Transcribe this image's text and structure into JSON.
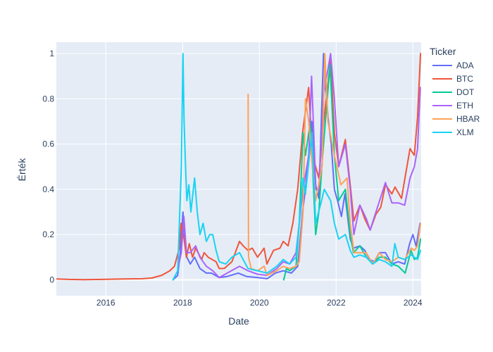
{
  "chart_data": {
    "type": "line",
    "title": "",
    "xlabel": "Date",
    "ylabel": "Érték",
    "x_axis_type": "date",
    "xlim": [
      "2014-09-17",
      "2024-03-20"
    ],
    "ylim": [
      -0.07,
      1.05
    ],
    "x_ticks": [
      "2016",
      "2018",
      "2020",
      "2022",
      "2024"
    ],
    "y_ticks": [
      "0",
      "0.2",
      "0.4",
      "0.6",
      "0.8",
      "1"
    ],
    "grid": true,
    "legend": {
      "title": "Ticker",
      "placement": "right"
    },
    "colors": {
      "plot_bg": "#e5ecf6",
      "grid": "#ffffff",
      "text": "#2a3f5f"
    },
    "series": [
      {
        "name": "ADA",
        "color": "#636efa",
        "points": [
          [
            "2017-10-01",
            0.0
          ],
          [
            "2017-11-15",
            0.02
          ],
          [
            "2017-12-10",
            0.12
          ],
          [
            "2018-01-04",
            0.3
          ],
          [
            "2018-01-20",
            0.18
          ],
          [
            "2018-02-10",
            0.1
          ],
          [
            "2018-03-15",
            0.07
          ],
          [
            "2018-04-25",
            0.1
          ],
          [
            "2018-06-15",
            0.05
          ],
          [
            "2018-08-15",
            0.03
          ],
          [
            "2018-10-01",
            0.03
          ],
          [
            "2018-12-15",
            0.01
          ],
          [
            "2019-03-01",
            0.015
          ],
          [
            "2019-06-15",
            0.03
          ],
          [
            "2019-09-01",
            0.015
          ],
          [
            "2019-12-15",
            0.01
          ],
          [
            "2020-03-15",
            0.005
          ],
          [
            "2020-06-01",
            0.03
          ],
          [
            "2020-08-15",
            0.04
          ],
          [
            "2020-11-01",
            0.03
          ],
          [
            "2021-01-01",
            0.06
          ],
          [
            "2021-02-15",
            0.3
          ],
          [
            "2021-03-15",
            0.4
          ],
          [
            "2021-05-15",
            0.7
          ],
          [
            "2021-06-20",
            0.42
          ],
          [
            "2021-07-20",
            0.36
          ],
          [
            "2021-09-02",
            1.0
          ],
          [
            "2021-10-15",
            0.72
          ],
          [
            "2021-11-15",
            0.6
          ],
          [
            "2021-12-15",
            0.4
          ],
          [
            "2022-01-20",
            0.34
          ],
          [
            "2022-02-20",
            0.28
          ],
          [
            "2022-03-25",
            0.38
          ],
          [
            "2022-05-15",
            0.18
          ],
          [
            "2022-06-15",
            0.14
          ],
          [
            "2022-08-15",
            0.15
          ],
          [
            "2022-10-01",
            0.13
          ],
          [
            "2022-11-15",
            0.09
          ],
          [
            "2023-01-01",
            0.08
          ],
          [
            "2023-02-15",
            0.12
          ],
          [
            "2023-04-15",
            0.12
          ],
          [
            "2023-06-15",
            0.07
          ],
          [
            "2023-08-15",
            0.08
          ],
          [
            "2023-10-15",
            0.07
          ],
          [
            "2023-12-01",
            0.16
          ],
          [
            "2024-01-01",
            0.2
          ],
          [
            "2024-02-01",
            0.15
          ],
          [
            "2024-03-10",
            0.25
          ]
        ]
      },
      {
        "name": "BTC",
        "color": "#ef553b",
        "points": [
          [
            "2014-09-17",
            0.004
          ],
          [
            "2015-01-15",
            0.002
          ],
          [
            "2015-06-01",
            0.001
          ],
          [
            "2015-12-01",
            0.002
          ],
          [
            "2016-06-15",
            0.004
          ],
          [
            "2016-12-15",
            0.005
          ],
          [
            "2017-03-15",
            0.008
          ],
          [
            "2017-06-15",
            0.02
          ],
          [
            "2017-09-01",
            0.04
          ],
          [
            "2017-10-15",
            0.06
          ],
          [
            "2017-11-30",
            0.14
          ],
          [
            "2017-12-17",
            0.25
          ],
          [
            "2018-01-15",
            0.18
          ],
          [
            "2018-02-06",
            0.1
          ],
          [
            "2018-03-05",
            0.16
          ],
          [
            "2018-04-05",
            0.1
          ],
          [
            "2018-05-05",
            0.14
          ],
          [
            "2018-07-01",
            0.09
          ],
          [
            "2018-07-25",
            0.12
          ],
          [
            "2018-09-01",
            0.1
          ],
          [
            "2018-11-15",
            0.08
          ],
          [
            "2018-12-15",
            0.05
          ],
          [
            "2019-02-01",
            0.05
          ],
          [
            "2019-04-15",
            0.08
          ],
          [
            "2019-06-26",
            0.17
          ],
          [
            "2019-08-01",
            0.15
          ],
          [
            "2019-09-15",
            0.13
          ],
          [
            "2019-10-26",
            0.14
          ],
          [
            "2019-12-15",
            0.1
          ],
          [
            "2020-02-15",
            0.14
          ],
          [
            "2020-03-13",
            0.07
          ],
          [
            "2020-05-15",
            0.13
          ],
          [
            "2020-07-15",
            0.14
          ],
          [
            "2020-08-15",
            0.17
          ],
          [
            "2020-10-01",
            0.15
          ],
          [
            "2020-11-15",
            0.25
          ],
          [
            "2020-12-31",
            0.4
          ],
          [
            "2021-02-15",
            0.65
          ],
          [
            "2021-04-14",
            0.85
          ],
          [
            "2021-05-20",
            0.55
          ],
          [
            "2021-07-20",
            0.45
          ],
          [
            "2021-09-05",
            0.7
          ],
          [
            "2021-11-09",
            0.97
          ],
          [
            "2021-12-15",
            0.65
          ],
          [
            "2022-01-25",
            0.5
          ],
          [
            "2022-03-29",
            0.62
          ],
          [
            "2022-05-15",
            0.42
          ],
          [
            "2022-06-18",
            0.26
          ],
          [
            "2022-08-15",
            0.33
          ],
          [
            "2022-09-30",
            0.27
          ],
          [
            "2022-11-21",
            0.22
          ],
          [
            "2023-01-15",
            0.29
          ],
          [
            "2023-03-01",
            0.32
          ],
          [
            "2023-04-15",
            0.42
          ],
          [
            "2023-06-15",
            0.38
          ],
          [
            "2023-07-15",
            0.41
          ],
          [
            "2023-09-15",
            0.36
          ],
          [
            "2023-10-25",
            0.47
          ],
          [
            "2023-12-05",
            0.58
          ],
          [
            "2024-01-15",
            0.55
          ],
          [
            "2024-02-15",
            0.72
          ],
          [
            "2024-03-14",
            1.0
          ]
        ]
      },
      {
        "name": "DOT",
        "color": "#00cc96",
        "points": [
          [
            "2020-08-20",
            0.0
          ],
          [
            "2020-09-15",
            0.05
          ],
          [
            "2020-10-15",
            0.04
          ],
          [
            "2020-12-15",
            0.06
          ],
          [
            "2021-01-15",
            0.25
          ],
          [
            "2021-02-20",
            0.65
          ],
          [
            "2021-03-15",
            0.55
          ],
          [
            "2021-05-01",
            0.7
          ],
          [
            "2021-06-20",
            0.2
          ],
          [
            "2021-07-20",
            0.3
          ],
          [
            "2021-08-25",
            0.55
          ],
          [
            "2021-11-04",
            0.95
          ],
          [
            "2021-12-15",
            0.55
          ],
          [
            "2022-01-25",
            0.35
          ],
          [
            "2022-03-30",
            0.4
          ],
          [
            "2022-05-15",
            0.2
          ],
          [
            "2022-06-15",
            0.12
          ],
          [
            "2022-08-15",
            0.15
          ],
          [
            "2022-10-15",
            0.1
          ],
          [
            "2022-12-15",
            0.07
          ],
          [
            "2023-02-15",
            0.1
          ],
          [
            "2023-04-15",
            0.1
          ],
          [
            "2023-06-15",
            0.07
          ],
          [
            "2023-08-15",
            0.06
          ],
          [
            "2023-10-20",
            0.03
          ],
          [
            "2023-12-15",
            0.13
          ],
          [
            "2024-01-15",
            0.09
          ],
          [
            "2024-02-15",
            0.1
          ],
          [
            "2024-03-14",
            0.18
          ]
        ]
      },
      {
        "name": "ETH",
        "color": "#ab63fa",
        "points": [
          [
            "2017-11-15",
            0.05
          ],
          [
            "2017-12-20",
            0.12
          ],
          [
            "2018-01-13",
            0.28
          ],
          [
            "2018-02-06",
            0.12
          ],
          [
            "2018-03-15",
            0.12
          ],
          [
            "2018-05-05",
            0.15
          ],
          [
            "2018-06-15",
            0.1
          ],
          [
            "2018-08-15",
            0.06
          ],
          [
            "2018-10-15",
            0.04
          ],
          [
            "2018-12-15",
            0.01
          ],
          [
            "2019-03-01",
            0.03
          ],
          [
            "2019-06-26",
            0.06
          ],
          [
            "2019-09-15",
            0.04
          ],
          [
            "2019-12-15",
            0.025
          ],
          [
            "2020-03-13",
            0.02
          ],
          [
            "2020-06-15",
            0.05
          ],
          [
            "2020-08-15",
            0.08
          ],
          [
            "2020-10-15",
            0.07
          ],
          [
            "2020-12-15",
            0.12
          ],
          [
            "2021-01-15",
            0.25
          ],
          [
            "2021-02-20",
            0.4
          ],
          [
            "2021-04-15",
            0.55
          ],
          [
            "2021-05-12",
            0.9
          ],
          [
            "2021-06-22",
            0.4
          ],
          [
            "2021-07-20",
            0.4
          ],
          [
            "2021-09-05",
            0.82
          ],
          [
            "2021-11-09",
            1.0
          ],
          [
            "2021-12-15",
            0.8
          ],
          [
            "2022-01-25",
            0.5
          ],
          [
            "2022-03-30",
            0.6
          ],
          [
            "2022-05-15",
            0.4
          ],
          [
            "2022-06-18",
            0.2
          ],
          [
            "2022-08-15",
            0.33
          ],
          [
            "2022-10-15",
            0.27
          ],
          [
            "2022-11-21",
            0.22
          ],
          [
            "2023-01-15",
            0.3
          ],
          [
            "2023-04-15",
            0.43
          ],
          [
            "2023-06-15",
            0.34
          ],
          [
            "2023-08-15",
            0.34
          ],
          [
            "2023-10-15",
            0.33
          ],
          [
            "2023-12-05",
            0.45
          ],
          [
            "2024-01-15",
            0.5
          ],
          [
            "2024-02-15",
            0.58
          ],
          [
            "2024-03-12",
            0.85
          ]
        ]
      },
      {
        "name": "HBAR",
        "color": "#ffa15a",
        "points": [
          [
            "2019-09-16",
            0.82
          ],
          [
            "2019-09-20",
            0.1
          ],
          [
            "2019-10-15",
            0.05
          ],
          [
            "2019-12-15",
            0.04
          ],
          [
            "2020-02-15",
            0.06
          ],
          [
            "2020-03-15",
            0.02
          ],
          [
            "2020-06-15",
            0.04
          ],
          [
            "2020-08-15",
            0.06
          ],
          [
            "2020-10-15",
            0.05
          ],
          [
            "2020-12-15",
            0.06
          ],
          [
            "2021-01-15",
            0.08
          ],
          [
            "2021-02-20",
            0.3
          ],
          [
            "2021-03-15",
            0.8
          ],
          [
            "2021-04-15",
            0.7
          ],
          [
            "2021-05-20",
            0.5
          ],
          [
            "2021-06-20",
            0.35
          ],
          [
            "2021-08-20",
            0.5
          ],
          [
            "2021-09-15",
            1.0
          ],
          [
            "2021-10-15",
            0.7
          ],
          [
            "2021-12-15",
            0.55
          ],
          [
            "2022-02-15",
            0.42
          ],
          [
            "2022-04-15",
            0.45
          ],
          [
            "2022-05-15",
            0.25
          ],
          [
            "2022-06-20",
            0.12
          ],
          [
            "2022-08-15",
            0.12
          ],
          [
            "2022-10-15",
            0.12
          ],
          [
            "2022-12-15",
            0.07
          ],
          [
            "2023-02-15",
            0.12
          ],
          [
            "2023-04-15",
            0.09
          ],
          [
            "2023-06-15",
            0.08
          ],
          [
            "2023-08-15",
            0.1
          ],
          [
            "2023-10-15",
            0.09
          ],
          [
            "2023-12-15",
            0.14
          ],
          [
            "2024-01-15",
            0.13
          ],
          [
            "2024-02-15",
            0.15
          ],
          [
            "2024-03-14",
            0.25
          ]
        ]
      },
      {
        "name": "XLM",
        "color": "#19d3f3",
        "points": [
          [
            "2017-10-01",
            0.0
          ],
          [
            "2017-11-15",
            0.04
          ],
          [
            "2017-12-20",
            0.5
          ],
          [
            "2018-01-04",
            1.0
          ],
          [
            "2018-01-15",
            0.7
          ],
          [
            "2018-01-25",
            0.55
          ],
          [
            "2018-02-10",
            0.35
          ],
          [
            "2018-03-01",
            0.42
          ],
          [
            "2018-03-20",
            0.3
          ],
          [
            "2018-04-25",
            0.45
          ],
          [
            "2018-05-20",
            0.3
          ],
          [
            "2018-06-15",
            0.2
          ],
          [
            "2018-07-15",
            0.25
          ],
          [
            "2018-08-15",
            0.17
          ],
          [
            "2018-09-15",
            0.2
          ],
          [
            "2018-10-15",
            0.2
          ],
          [
            "2018-11-15",
            0.13
          ],
          [
            "2018-12-15",
            0.08
          ],
          [
            "2019-02-15",
            0.07
          ],
          [
            "2019-04-15",
            0.1
          ],
          [
            "2019-06-26",
            0.12
          ],
          [
            "2019-09-15",
            0.05
          ],
          [
            "2019-12-15",
            0.04
          ],
          [
            "2020-03-15",
            0.03
          ],
          [
            "2020-06-15",
            0.06
          ],
          [
            "2020-08-15",
            0.09
          ],
          [
            "2020-10-15",
            0.07
          ],
          [
            "2020-12-15",
            0.1
          ],
          [
            "2021-01-15",
            0.25
          ],
          [
            "2021-02-20",
            0.45
          ],
          [
            "2021-03-15",
            0.38
          ],
          [
            "2021-05-15",
            0.65
          ],
          [
            "2021-06-20",
            0.25
          ],
          [
            "2021-08-15",
            0.35
          ],
          [
            "2021-09-10",
            0.4
          ],
          [
            "2021-11-09",
            0.35
          ],
          [
            "2021-12-15",
            0.25
          ],
          [
            "2022-01-25",
            0.18
          ],
          [
            "2022-03-30",
            0.2
          ],
          [
            "2022-05-15",
            0.13
          ],
          [
            "2022-06-18",
            0.1
          ],
          [
            "2022-08-15",
            0.11
          ],
          [
            "2022-10-15",
            0.1
          ],
          [
            "2022-12-15",
            0.07
          ],
          [
            "2023-02-15",
            0.09
          ],
          [
            "2023-04-15",
            0.08
          ],
          [
            "2023-06-15",
            0.06
          ],
          [
            "2023-07-13",
            0.16
          ],
          [
            "2023-08-15",
            0.1
          ],
          [
            "2023-10-15",
            0.09
          ],
          [
            "2023-12-15",
            0.11
          ],
          [
            "2024-01-15",
            0.1
          ],
          [
            "2024-02-15",
            0.09
          ],
          [
            "2024-03-14",
            0.13
          ]
        ]
      }
    ]
  }
}
